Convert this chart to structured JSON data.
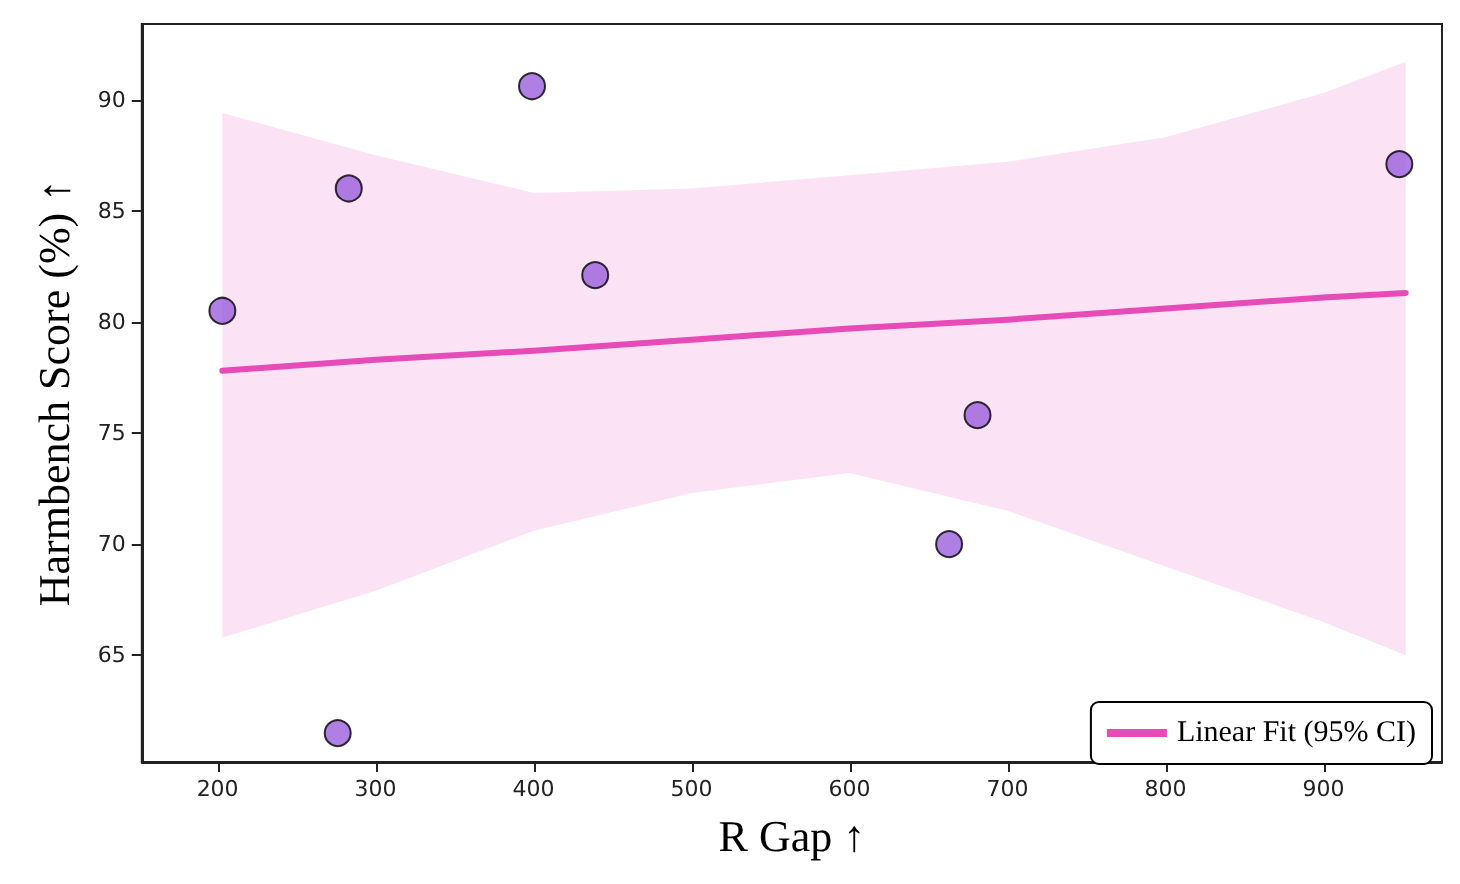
{
  "chart_data": {
    "type": "scatter",
    "xlabel": "R Gap ↑",
    "ylabel": "Harmbench Score (%) ↑",
    "xlim": [
      152,
      975
    ],
    "ylim": [
      60.2,
      93.4
    ],
    "xticks": [
      200,
      300,
      400,
      500,
      600,
      700,
      800,
      900
    ],
    "yticks": [
      65,
      70,
      75,
      80,
      85,
      90
    ],
    "grid": false,
    "legend": "bottom right",
    "series": [
      {
        "marker": "circle",
        "color": "#9b5fdc",
        "x": [
          203,
          276,
          283,
          399,
          439,
          663,
          681,
          948
        ],
        "values": [
          80.5,
          61.5,
          86.0,
          90.6,
          82.1,
          70.0,
          75.8,
          87.1
        ]
      },
      {
        "type": "line",
        "name": "Linear Fit (95% CI)",
        "color": "#e64bb8",
        "marker": "none",
        "line_style": "solid",
        "x": [
          203,
          300,
          400,
          500,
          600,
          700,
          800,
          900,
          952
        ],
        "values": [
          77.8,
          78.3,
          78.7,
          79.2,
          79.7,
          80.1,
          80.6,
          81.1,
          81.3
        ],
        "lower": [
          65.8,
          67.9,
          70.6,
          72.3,
          73.2,
          71.5,
          69.0,
          66.5,
          65.0
        ],
        "upper": [
          89.4,
          87.5,
          85.8,
          86.0,
          86.6,
          87.2,
          88.3,
          90.3,
          91.7
        ]
      }
    ]
  }
}
